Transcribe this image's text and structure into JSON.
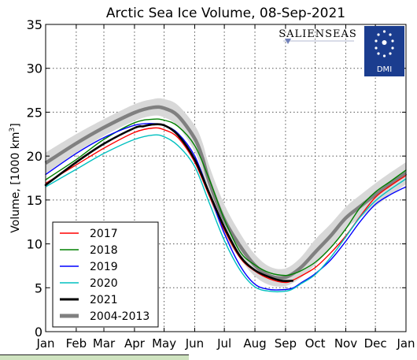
{
  "chart_data": {
    "type": "line",
    "title": "Arctic Sea Ice Volume, 08-Sep-2021",
    "ylabel_prefix": "Volume, [1000 km",
    "ylabel_exp": "3",
    "ylabel_suffix": "]",
    "xlabel": "",
    "ylim": [
      0,
      35
    ],
    "yticks": [
      0,
      5,
      10,
      15,
      20,
      25,
      30,
      35
    ],
    "xlim": [
      1,
      366
    ],
    "months": [
      {
        "label": "Jan",
        "day": 1
      },
      {
        "label": "Feb",
        "day": 32
      },
      {
        "label": "Mar",
        "day": 60
      },
      {
        "label": "Apr",
        "day": 91
      },
      {
        "label": "May",
        "day": 121
      },
      {
        "label": "Jun",
        "day": 152
      },
      {
        "label": "Jul",
        "day": 182
      },
      {
        "label": "Aug",
        "day": 213
      },
      {
        "label": "Sep",
        "day": 244
      },
      {
        "label": "Oct",
        "day": 274
      },
      {
        "label": "Nov",
        "day": 305
      },
      {
        "label": "Dec",
        "day": 335
      },
      {
        "label": "Jan",
        "day": 366
      }
    ],
    "grid": true,
    "legend_position": "lower-left",
    "band": {
      "name": "2004-2013",
      "x": [
        1,
        32,
        60,
        91,
        110,
        121,
        135,
        152,
        160,
        167,
        182,
        198,
        213,
        228,
        244,
        259,
        274,
        290,
        305,
        320,
        335,
        350,
        366
      ],
      "upper": [
        20.4,
        22.5,
        24.2,
        25.9,
        26.5,
        26.5,
        25.8,
        23.5,
        21.5,
        18.8,
        14.5,
        11.2,
        8.8,
        7.4,
        7.2,
        8.4,
        10.5,
        12.3,
        14.2,
        15.6,
        16.9,
        18.1,
        19.3
      ],
      "lower": [
        18.0,
        20.4,
        22.3,
        24.0,
        24.6,
        24.4,
        23.4,
        20.5,
        18.0,
        15.2,
        11.0,
        8.3,
        6.3,
        5.3,
        5.2,
        6.1,
        7.6,
        9.6,
        11.7,
        13.0,
        14.3,
        15.5,
        16.8
      ]
    },
    "series": [
      {
        "name": "2017",
        "color": "#ff0000",
        "x": [
          1,
          32,
          60,
          91,
          110,
          121,
          135,
          152,
          167,
          182,
          198,
          213,
          228,
          244,
          252,
          259,
          274,
          290,
          305,
          320,
          335,
          350,
          366
        ],
        "y": [
          16.9,
          19.0,
          20.9,
          22.7,
          23.2,
          23.0,
          22.1,
          19.3,
          15.4,
          11.6,
          8.4,
          6.9,
          6.0,
          5.6,
          5.9,
          6.3,
          7.3,
          9.0,
          10.9,
          13.2,
          15.3,
          16.6,
          17.8
        ]
      },
      {
        "name": "2018",
        "color": "#008000",
        "x": [
          1,
          32,
          60,
          91,
          110,
          121,
          135,
          152,
          167,
          182,
          198,
          213,
          228,
          244,
          252,
          259,
          274,
          290,
          305,
          320,
          335,
          350,
          366
        ],
        "y": [
          17.3,
          19.6,
          21.9,
          23.8,
          24.2,
          24.1,
          23.4,
          21.2,
          17.3,
          12.8,
          9.1,
          7.6,
          6.7,
          6.4,
          6.6,
          6.9,
          7.9,
          9.6,
          11.7,
          14.2,
          15.9,
          17.1,
          18.4
        ]
      },
      {
        "name": "2019",
        "color": "#0000ff",
        "x": [
          1,
          32,
          60,
          91,
          110,
          121,
          135,
          152,
          167,
          182,
          198,
          213,
          228,
          244,
          252,
          259,
          274,
          290,
          305,
          320,
          335,
          350,
          366
        ],
        "y": [
          17.9,
          20.3,
          22.1,
          23.5,
          23.7,
          23.5,
          22.6,
          20.0,
          15.7,
          11.2,
          7.5,
          5.4,
          4.8,
          4.8,
          5.0,
          5.5,
          6.6,
          8.2,
          10.3,
          12.6,
          14.5,
          15.6,
          16.5
        ]
      },
      {
        "name": "2020",
        "color": "#00c0c0",
        "x": [
          1,
          32,
          60,
          91,
          110,
          121,
          135,
          152,
          167,
          182,
          198,
          213,
          228,
          244,
          252,
          259,
          274,
          290,
          305,
          320,
          335,
          350,
          366
        ],
        "y": [
          16.5,
          18.5,
          20.3,
          21.9,
          22.4,
          22.2,
          21.2,
          18.8,
          14.6,
          10.4,
          7.0,
          5.1,
          4.6,
          4.6,
          4.9,
          5.4,
          6.5,
          8.5,
          10.8,
          13.1,
          14.9,
          16.2,
          17.4
        ]
      },
      {
        "name": "2021",
        "color": "#000000",
        "x": [
          1,
          32,
          60,
          91,
          100,
          110,
          121,
          135,
          152,
          167,
          182,
          198,
          213,
          228,
          240,
          251
        ],
        "y": [
          16.7,
          19.3,
          21.4,
          23.2,
          23.4,
          23.6,
          23.5,
          22.4,
          19.6,
          15.7,
          11.9,
          8.6,
          7.0,
          6.2,
          5.8,
          5.8
        ]
      }
    ],
    "legend": [
      {
        "label": "2017",
        "color": "#ff0000"
      },
      {
        "label": "2018",
        "color": "#008000"
      },
      {
        "label": "2019",
        "color": "#0000ff"
      },
      {
        "label": "2020",
        "color": "#00c0c0"
      },
      {
        "label": "2021",
        "color": "#000000"
      },
      {
        "label": "2004-2013",
        "color": "#808080"
      }
    ]
  },
  "logos": {
    "salienseas": "SALIENSEAS",
    "dmi": "DMI",
    "dmi_color": "#1b3d8f"
  }
}
